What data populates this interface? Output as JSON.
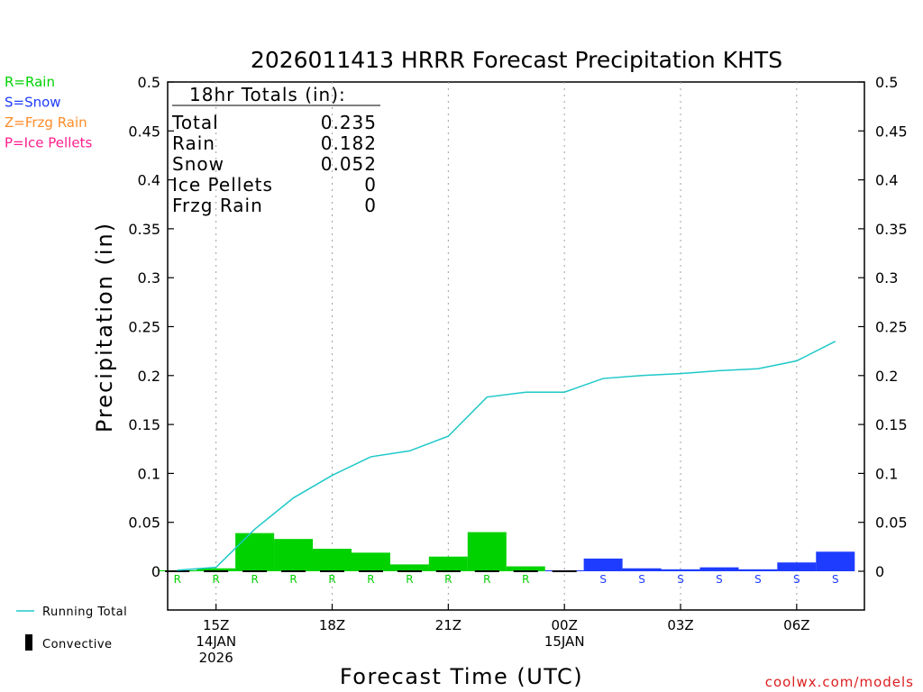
{
  "chart_data": {
    "type": "bar",
    "title": "2026011413 HRRR Forecast Precipitation KHTS",
    "xlabel": "Forecast Time (UTC)",
    "ylabel": "Precipitation (in)",
    "ylim": [
      -0.04,
      0.5
    ],
    "xlim": [
      13.75,
      31.75
    ],
    "yticks": [
      "0",
      "0.05",
      "0.1",
      "0.15",
      "0.2",
      "0.25",
      "0.3",
      "0.35",
      "0.4",
      "0.45",
      "0.5"
    ],
    "ytick_values": [
      0,
      0.05,
      0.1,
      0.15,
      0.2,
      0.25,
      0.3,
      0.35,
      0.4,
      0.45,
      0.5
    ],
    "xticks": [
      {
        "hour": 15,
        "lines": [
          "15Z",
          "14JAN",
          "2026"
        ]
      },
      {
        "hour": 18,
        "lines": [
          "18Z"
        ]
      },
      {
        "hour": 21,
        "lines": [
          "21Z"
        ]
      },
      {
        "hour": 24,
        "lines": [
          "00Z",
          "15JAN"
        ]
      },
      {
        "hour": 27,
        "lines": [
          "03Z"
        ]
      },
      {
        "hour": 30,
        "lines": [
          "06Z"
        ]
      }
    ],
    "grid": true,
    "hours": [
      14,
      15,
      16,
      17,
      18,
      19,
      20,
      21,
      22,
      23,
      24,
      25,
      26,
      27,
      28,
      29,
      30,
      31
    ],
    "series": [
      {
        "name": "Rain",
        "color": "#00d200",
        "values": [
          0.001,
          0.003,
          0.039,
          0.033,
          0.023,
          0.019,
          0.007,
          0.015,
          0.04,
          0.005,
          0,
          0,
          0,
          0,
          0,
          0,
          0,
          0
        ]
      },
      {
        "name": "Snow",
        "color": "#1e3cff",
        "values": [
          0,
          0,
          0,
          0,
          0,
          0,
          0,
          0,
          0,
          0,
          0.001,
          0.013,
          0.003,
          0.002,
          0.004,
          0.002,
          0.009,
          0.02
        ]
      },
      {
        "name": "Convective",
        "color": "#000000",
        "values": [
          0.001,
          0.001,
          0.001,
          0.001,
          0.001,
          0.001,
          0.001,
          0.001,
          0.001,
          0.001,
          0.001,
          0,
          0,
          0,
          0,
          0,
          0,
          0
        ]
      }
    ],
    "running_total": {
      "name": "Running Total",
      "color": "#1ec8c8",
      "x": [
        14,
        15,
        16,
        17,
        18,
        19,
        20,
        21,
        22,
        23,
        24,
        25,
        26,
        27,
        28,
        29,
        30,
        31
      ],
      "values": [
        0.001,
        0.004,
        0.043,
        0.075,
        0.098,
        0.117,
        0.123,
        0.138,
        0.178,
        0.183,
        0.183,
        0.197,
        0.2,
        0.202,
        0.205,
        0.207,
        0.215,
        0.235
      ]
    },
    "type_markers": {
      "hours": [
        14,
        15,
        16,
        17,
        18,
        19,
        20,
        21,
        22,
        23,
        25,
        26,
        27,
        28,
        29,
        30,
        31
      ],
      "labels": [
        "R",
        "R",
        "R",
        "R",
        "R",
        "R",
        "R",
        "R",
        "R",
        "R",
        "S",
        "S",
        "S",
        "S",
        "S",
        "S",
        "S"
      ]
    },
    "legend": {
      "position": "left",
      "type_keys": [
        {
          "text": "R=Rain",
          "color": "#00d200"
        },
        {
          "text": "S=Snow",
          "color": "#1e3cff"
        },
        {
          "text": "Z=Frzg Rain",
          "color": "#ff8c28"
        },
        {
          "text": "P=Ice Pellets",
          "color": "#ff1e8c"
        }
      ],
      "running_total_label": "Running Total",
      "convective_label": "Convective"
    },
    "totals_box": {
      "title": "18hr Totals (in):",
      "rows": [
        {
          "label": "Total",
          "value": "0.235"
        },
        {
          "label": "Rain",
          "value": "0.182"
        },
        {
          "label": "Snow",
          "value": "0.052"
        },
        {
          "label": "Ice Pellets",
          "value": "0"
        },
        {
          "label": "Frzg Rain",
          "value": "0"
        }
      ]
    },
    "credit": "coolwx.com/models"
  }
}
